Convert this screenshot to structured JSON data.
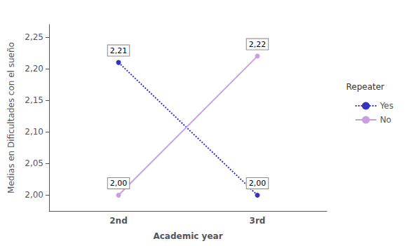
{
  "chart_data": {
    "type": "line",
    "categories": [
      "2nd",
      "3rd"
    ],
    "series": [
      {
        "name": "Yes",
        "color": "#3333bb",
        "line_style": "dotted",
        "marker": "circle",
        "values": [
          2.21,
          2.0
        ],
        "value_labels": [
          "2,21",
          "2,00"
        ]
      },
      {
        "name": "No",
        "color": "#c8a0e0",
        "line_style": "solid",
        "marker": "circle",
        "values": [
          2.0,
          2.22
        ],
        "value_labels": [
          "2,00",
          "2,22"
        ]
      }
    ],
    "xlabel": "Academic year",
    "ylabel": "Medias en Dificultades con el sueño",
    "legend_title": "Repeater",
    "ylim": [
      1.975,
      2.27
    ],
    "yticks": [
      {
        "value": 2.0,
        "label": "2,00"
      },
      {
        "value": 2.05,
        "label": "2,05"
      },
      {
        "value": 2.1,
        "label": "2,10"
      },
      {
        "value": 2.15,
        "label": "2,15"
      },
      {
        "value": 2.2,
        "label": "2,20"
      },
      {
        "value": 2.25,
        "label": "2,25"
      }
    ],
    "data_labels": true,
    "legend": "right",
    "grid": false
  }
}
